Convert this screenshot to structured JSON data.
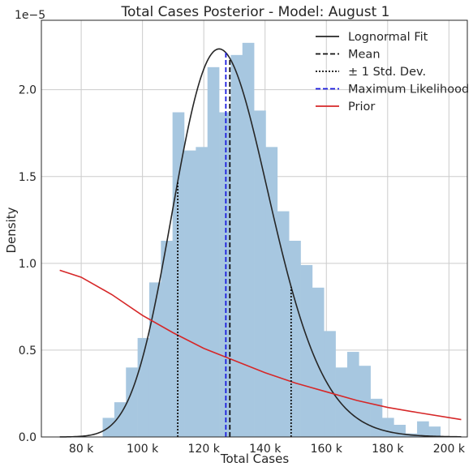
{
  "chart_data": {
    "type": "histogram",
    "title": "Total Cases Posterior - Model: August 1",
    "xlabel": "Total Cases",
    "ylabel": "Density",
    "y_offset_text": "1e−5",
    "xlim": [
      67000,
      206000
    ],
    "ylim": [
      0,
      2.4
    ],
    "x_ticks": [
      80000,
      100000,
      120000,
      140000,
      160000,
      180000,
      200000
    ],
    "x_tick_labels": [
      "80 k",
      "100 k",
      "120 k",
      "140 k",
      "160 k",
      "180 k",
      "200 k"
    ],
    "y_ticks": [
      0,
      0.5,
      1.0,
      1.5,
      2.0
    ],
    "y_tick_labels": [
      "0.0",
      "0.5",
      "1.0",
      "1.5",
      "2.0"
    ],
    "grid": true,
    "legend_position": "upper right",
    "histogram": {
      "bin_start": 87000,
      "bin_width": 3800,
      "heights": [
        0.11,
        0.2,
        0.4,
        0.57,
        0.89,
        1.13,
        1.87,
        1.65,
        1.67,
        2.13,
        1.87,
        2.2,
        2.27,
        1.88,
        1.67,
        1.3,
        1.13,
        0.99,
        0.86,
        0.61,
        0.4,
        0.49,
        0.41,
        0.22,
        0.11,
        0.07,
        0.02,
        0.09,
        0.06
      ],
      "color": "#a7c7e0"
    },
    "series": [
      {
        "name": "Lognormal Fit",
        "style": "solid",
        "color": "#262626",
        "curve": "lognormal",
        "mode": 125000,
        "peak": 2.235
      },
      {
        "name": "Mean",
        "style": "dashed",
        "color": "#111111",
        "x": 128500
      },
      {
        "name": "± 1 Std. Dev.",
        "style": "dotted",
        "color": "#111111",
        "x": [
          111500,
          148500
        ]
      },
      {
        "name": "Maximum Likelihood",
        "style": "dashed",
        "color": "#1a1adf",
        "x": 127200
      },
      {
        "name": "Prior",
        "style": "solid",
        "color": "#d62728",
        "x": [
          73000,
          80000,
          90000,
          100000,
          110000,
          120000,
          130000,
          140000,
          150000,
          160000,
          170000,
          180000,
          190000,
          204000
        ],
        "y": [
          0.96,
          0.92,
          0.82,
          0.7,
          0.6,
          0.51,
          0.44,
          0.37,
          0.31,
          0.26,
          0.21,
          0.17,
          0.14,
          0.1
        ]
      }
    ]
  }
}
